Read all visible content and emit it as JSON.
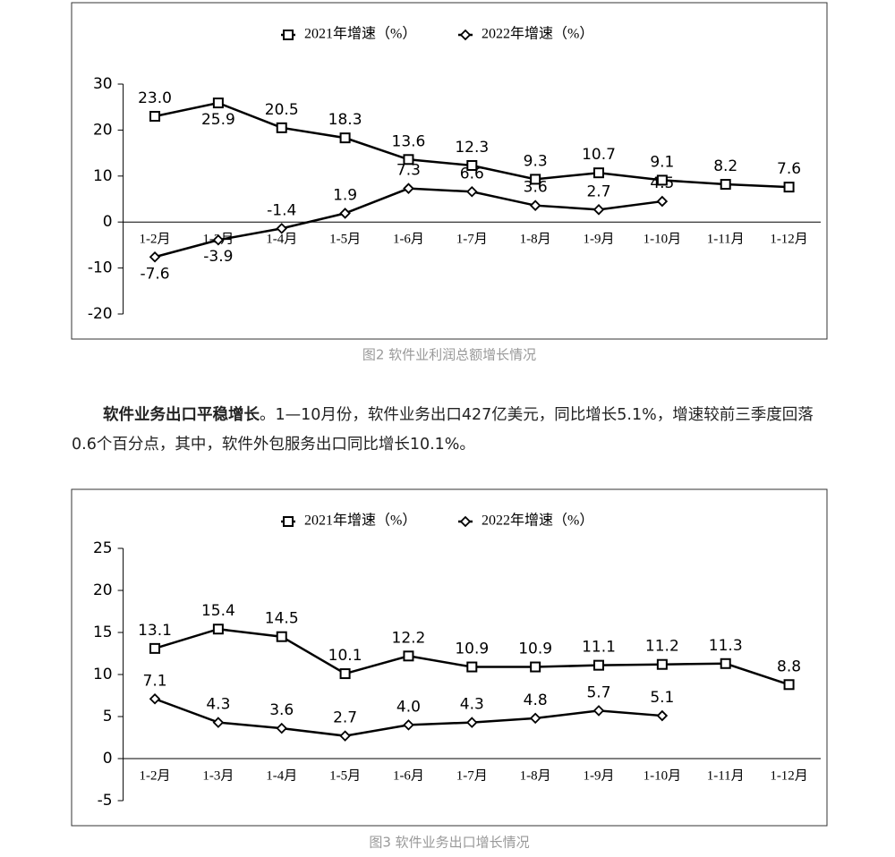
{
  "chart_data": [
    {
      "type": "line",
      "legend_position": "top",
      "grid": false,
      "categories": [
        "1-2月",
        "1-3月",
        "1-4月",
        "1-5月",
        "1-6月",
        "1-7月",
        "1-8月",
        "1-9月",
        "1-10月",
        "1-11月",
        "1-12月"
      ],
      "series": [
        {
          "name": "2021年增速（%）",
          "color": "#000000",
          "marker": "square",
          "values": [
            23,
            25.9,
            20.5,
            18.3,
            13.6,
            12.3,
            9.3,
            10.7,
            9.1,
            8.2,
            7.6
          ],
          "value_labels": [
            "23.0",
            "25.9",
            "20.5",
            "18.3",
            "13.6",
            "12.3",
            "9.3",
            "10.7",
            "9.1",
            "8.2",
            "7.6"
          ]
        },
        {
          "name": "2022年增速（%）",
          "color": "#000000",
          "marker": "diamond",
          "values": [
            -7.6,
            -3.9,
            -1.4,
            1.9,
            7.3,
            6.6,
            3.6,
            2.7,
            4.5,
            null,
            null
          ],
          "value_labels": [
            "-7.6",
            "-3.9",
            "-1.4",
            "1.9",
            "7.3",
            "6.6",
            "3.6",
            "2.7",
            "4.5",
            null,
            null
          ]
        }
      ],
      "ylim": [
        -20,
        30
      ],
      "yticks": [
        -20,
        -10,
        0,
        10,
        20,
        30
      ],
      "caption": "图2  软件业利润总额增长情况"
    },
    {
      "type": "line",
      "legend_position": "top",
      "grid": false,
      "categories": [
        "1-2月",
        "1-3月",
        "1-4月",
        "1-5月",
        "1-6月",
        "1-7月",
        "1-8月",
        "1-9月",
        "1-10月",
        "1-11月",
        "1-12月"
      ],
      "series": [
        {
          "name": "2021年增速（%）",
          "color": "#000000",
          "marker": "square",
          "values": [
            13.1,
            15.4,
            14.5,
            10.1,
            12.2,
            10.9,
            10.9,
            11.1,
            11.2,
            11.3,
            8.8
          ]
        },
        {
          "name": "2022年增速（%）",
          "color": "#000000",
          "marker": "diamond",
          "values": [
            7.1,
            4.3,
            3.6,
            2.7,
            4,
            4.3,
            4.8,
            5.7,
            5.1,
            null,
            null
          ],
          "value_labels": [
            "7.1",
            "4.3",
            "3.6",
            "2.7",
            "4.0",
            "4.3",
            "4.8",
            "5.7",
            "5.1",
            null,
            null
          ]
        }
      ],
      "ylim": [
        -5,
        25
      ],
      "yticks": [
        -5,
        0,
        5,
        10,
        15,
        20,
        25
      ],
      "caption": "图3  软件业务出口增长情况"
    }
  ],
  "paragraph": {
    "lead": "软件业务出口平稳增长",
    "text": "。1—10月份，软件业务出口427亿美元，同比增长5.1%，增速较前三季度回落0.6个百分点，其中，软件外包服务出口同比增长10.1%。"
  }
}
